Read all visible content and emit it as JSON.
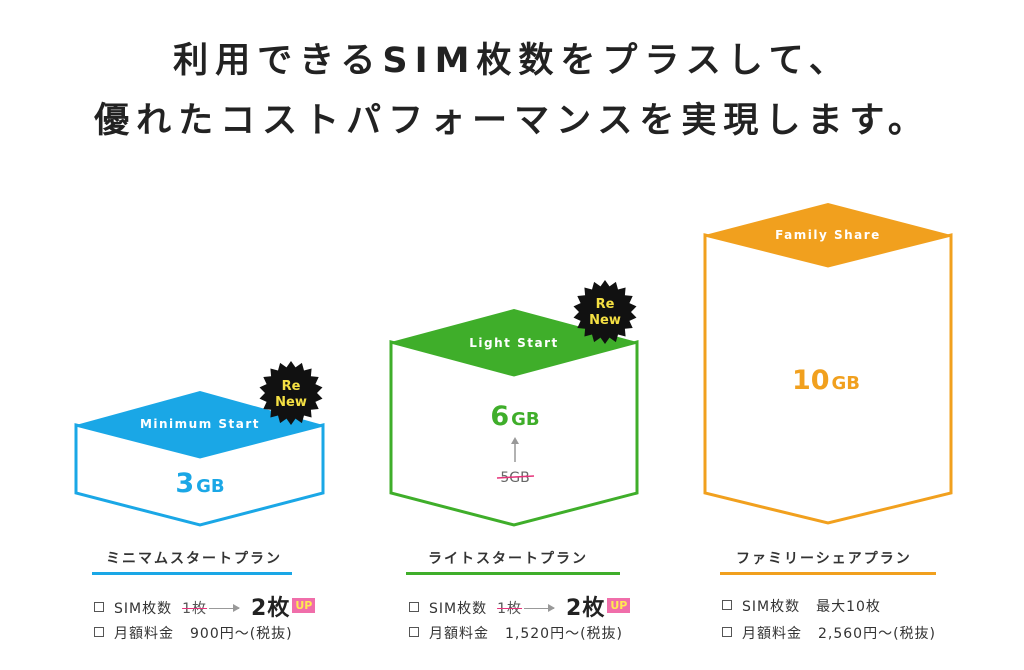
{
  "headline": {
    "line1": "利用できるSIM枚数をプラスして、",
    "line2": "優れたコストパフォーマンスを実現します。"
  },
  "colors": {
    "minimum": "#1aa7e6",
    "light": "#3fae2a",
    "family": "#f1a01e",
    "up_badge": "#f06eaa",
    "strike": "#e6337a"
  },
  "renew_badge": {
    "line1": "Re",
    "line2": "New"
  },
  "plans": [
    {
      "tag": "Minimum Start",
      "data_num": "3",
      "data_unit": "GB",
      "name": "ミニマムスタートプラン",
      "sim_label": "SIM枚数",
      "sim_old": "1枚",
      "sim_new": "2枚",
      "up": "UP",
      "fee_label": "月額料金",
      "fee_value": "900円〜(税抜)",
      "renew": true
    },
    {
      "tag": "Light Start",
      "data_num": "6",
      "data_unit": "GB",
      "old_data": "5GB",
      "name": "ライトスタートプラン",
      "sim_label": "SIM枚数",
      "sim_old": "1枚",
      "sim_new": "2枚",
      "up": "UP",
      "fee_label": "月額料金",
      "fee_value": "1,520円〜(税抜)",
      "renew": true
    },
    {
      "tag": "Family Share",
      "data_num": "10",
      "data_unit": "GB",
      "name": "ファミリーシェアプラン",
      "sim_label": "SIM枚数",
      "sim_value": "最大10枚",
      "fee_label": "月額料金",
      "fee_value": "2,560円〜(税抜)",
      "renew": false
    }
  ]
}
